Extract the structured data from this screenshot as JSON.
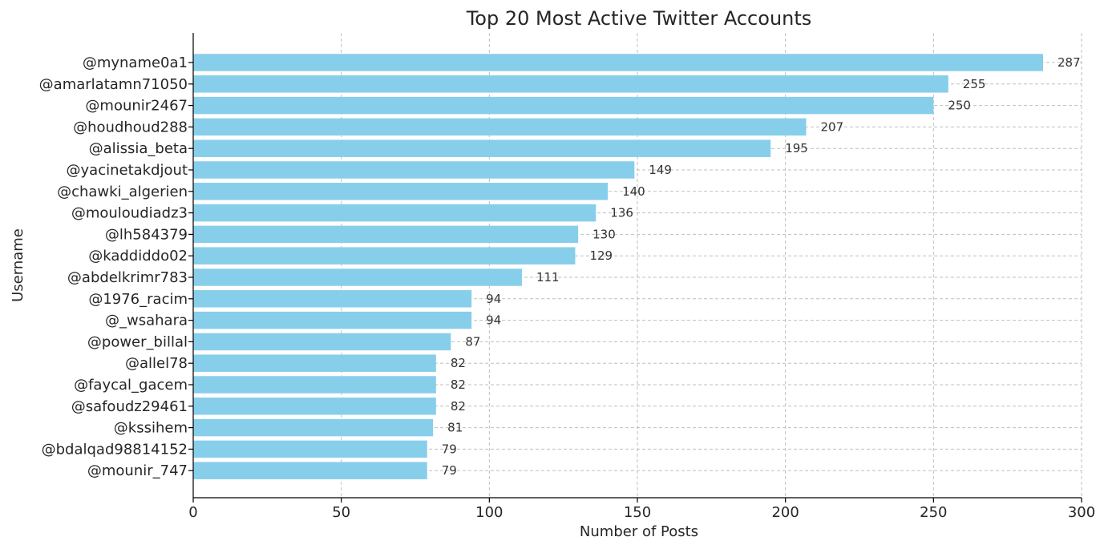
{
  "chart_data": {
    "type": "bar",
    "orientation": "horizontal",
    "title": "Top 20 Most Active Twitter Accounts",
    "xlabel": "Number of Posts",
    "ylabel": "Username",
    "xlim": [
      0,
      300
    ],
    "xticks": [
      0,
      50,
      100,
      150,
      200,
      250,
      300
    ],
    "grid": true,
    "bar_color": "#87ceeb",
    "categories": [
      "@myname0a1",
      "@amarlatamn71050",
      "@mounir2467",
      "@houdhoud288",
      "@alissia_beta",
      "@yacinetakdjout",
      "@chawki_algerien",
      "@mouloudiadz3",
      "@lh584379",
      "@kaddiddo02",
      "@abdelkrimr783",
      "@1976_racim",
      "@_wsahara",
      "@power_billal",
      "@allel78",
      "@faycal_gacem",
      "@safoudz29461",
      "@kssihem",
      "@bdalqad98814152",
      "@mounir_747"
    ],
    "values": [
      287,
      255,
      250,
      207,
      195,
      149,
      140,
      136,
      130,
      129,
      111,
      94,
      94,
      87,
      82,
      82,
      82,
      81,
      79,
      79
    ]
  }
}
